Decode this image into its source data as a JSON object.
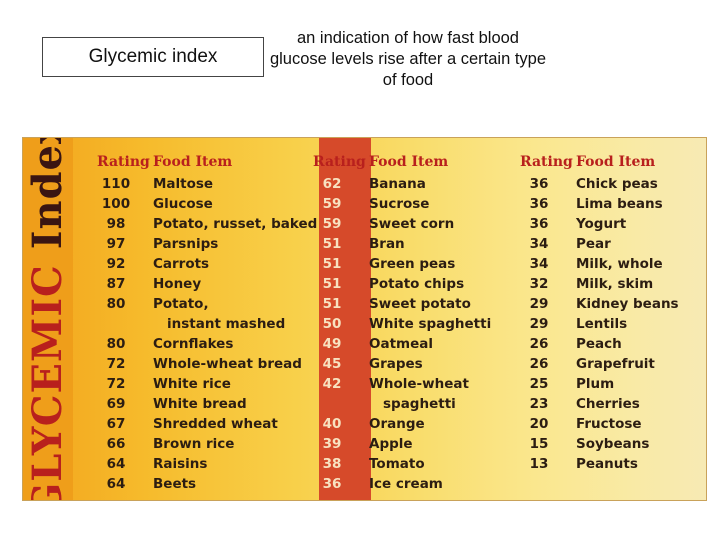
{
  "header": {
    "title": "Glycemic index",
    "definition": "an indication of how fast blood glucose levels rise after a certain type of food"
  },
  "card": {
    "vertical_title_part1": "GLYCEMIC",
    "vertical_title_part2": " Index",
    "column_headers": {
      "rating": "Rating",
      "food": "Food Item"
    },
    "columns": [
      [
        {
          "rating": "110",
          "food": "Maltose"
        },
        {
          "rating": "100",
          "food": "Glucose"
        },
        {
          "rating": "98",
          "food": "Potato, russet, baked"
        },
        {
          "rating": "97",
          "food": "Parsnips"
        },
        {
          "rating": "92",
          "food": "Carrots"
        },
        {
          "rating": "87",
          "food": "Honey"
        },
        {
          "rating": "80",
          "food": "Potato,",
          "food2": "instant mashed"
        },
        {
          "rating": "80",
          "food": "Cornflakes"
        },
        {
          "rating": "72",
          "food": "Whole-wheat bread"
        },
        {
          "rating": "72",
          "food": "White rice"
        },
        {
          "rating": "69",
          "food": "White bread"
        },
        {
          "rating": "67",
          "food": "Shredded wheat"
        },
        {
          "rating": "66",
          "food": "Brown rice"
        },
        {
          "rating": "64",
          "food": "Raisins"
        },
        {
          "rating": "64",
          "food": "Beets"
        }
      ],
      [
        {
          "rating": "62",
          "food": "Banana"
        },
        {
          "rating": "59",
          "food": "Sucrose"
        },
        {
          "rating": "59",
          "food": "Sweet corn"
        },
        {
          "rating": "51",
          "food": "Bran"
        },
        {
          "rating": "51",
          "food": "Green peas"
        },
        {
          "rating": "51",
          "food": "Potato chips"
        },
        {
          "rating": "51",
          "food": "Sweet potato"
        },
        {
          "rating": "50",
          "food": "White spaghetti"
        },
        {
          "rating": "49",
          "food": "Oatmeal"
        },
        {
          "rating": "45",
          "food": "Grapes"
        },
        {
          "rating": "42",
          "food": "Whole-wheat",
          "food2": "spaghetti"
        },
        {
          "rating": "40",
          "food": "Orange"
        },
        {
          "rating": "39",
          "food": "Apple"
        },
        {
          "rating": "38",
          "food": "Tomato"
        },
        {
          "rating": "36",
          "food": "Ice cream"
        }
      ],
      [
        {
          "rating": "36",
          "food": "Chick peas"
        },
        {
          "rating": "36",
          "food": "Lima beans"
        },
        {
          "rating": "36",
          "food": "Yogurt"
        },
        {
          "rating": "34",
          "food": "Pear"
        },
        {
          "rating": "34",
          "food": "Milk, whole"
        },
        {
          "rating": "32",
          "food": "Milk, skim"
        },
        {
          "rating": "29",
          "food": "Kidney beans"
        },
        {
          "rating": "29",
          "food": "Lentils"
        },
        {
          "rating": "26",
          "food": "Peach"
        },
        {
          "rating": "26",
          "food": "Grapefruit"
        },
        {
          "rating": "25",
          "food": "Plum"
        },
        {
          "rating": "23",
          "food": "Cherries"
        },
        {
          "rating": "20",
          "food": "Fructose"
        },
        {
          "rating": "15",
          "food": "Soybeans"
        },
        {
          "rating": "13",
          "food": "Peanuts"
        }
      ]
    ]
  }
}
